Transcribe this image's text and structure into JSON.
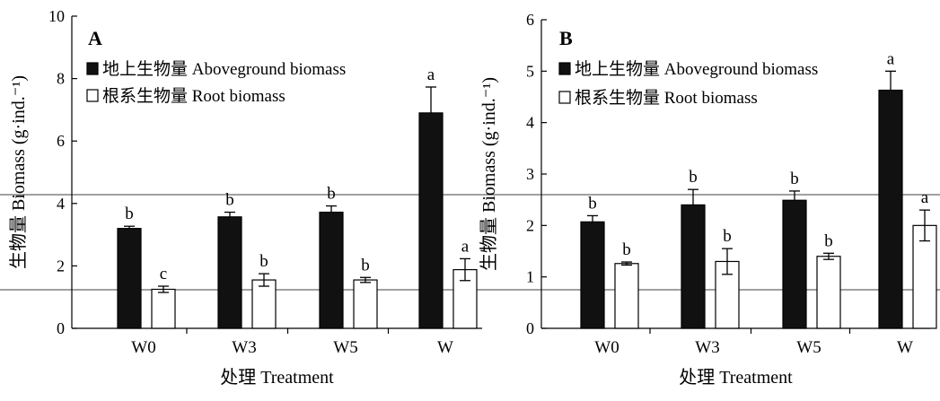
{
  "figure": {
    "colors": {
      "aboveground": "#111111",
      "root": "#ffffff",
      "axis": "#000000"
    }
  },
  "chart_data": [
    {
      "type": "bar",
      "panel_label": "A",
      "categories": [
        "W0",
        "W3",
        "W5",
        "W"
      ],
      "series": [
        {
          "name": "地上生物量 Aboveground biomass",
          "values": [
            3.2,
            3.57,
            3.72,
            6.9
          ],
          "errors": [
            0.07,
            0.15,
            0.2,
            0.83
          ],
          "letters": [
            "b",
            "b",
            "b",
            "a"
          ]
        },
        {
          "name": "根系生物量 Root biomass",
          "values": [
            1.25,
            1.55,
            1.55,
            1.88
          ],
          "errors": [
            0.1,
            0.2,
            0.08,
            0.35
          ],
          "letters": [
            "c",
            "b",
            "b",
            "a"
          ]
        }
      ],
      "xlabel": "处理 Treatment",
      "ylabel": "生物量 Biomass (g·ind.⁻¹)",
      "ylim": [
        0,
        10
      ],
      "yticks": [
        0,
        2,
        4,
        6,
        8,
        10
      ],
      "legend": "top-left"
    },
    {
      "type": "bar",
      "panel_label": "B",
      "categories": [
        "W0",
        "W3",
        "W5",
        "W"
      ],
      "series": [
        {
          "name": "地上生物量 Aboveground biomass",
          "values": [
            2.07,
            2.4,
            2.49,
            4.63
          ],
          "errors": [
            0.12,
            0.3,
            0.18,
            0.37
          ],
          "letters": [
            "b",
            "b",
            "b",
            "a"
          ]
        },
        {
          "name": "根系生物量 Root biomass",
          "values": [
            1.26,
            1.3,
            1.4,
            2.0
          ],
          "errors": [
            0.03,
            0.25,
            0.06,
            0.3
          ],
          "letters": [
            "b",
            "b",
            "b",
            "a"
          ]
        }
      ],
      "xlabel": "处理 Treatment",
      "ylabel": "生物量 Biomass (g·ind.⁻¹)",
      "ylim": [
        0,
        6
      ],
      "yticks": [
        0,
        1,
        2,
        3,
        4,
        5,
        6
      ],
      "legend": "top-left"
    }
  ]
}
